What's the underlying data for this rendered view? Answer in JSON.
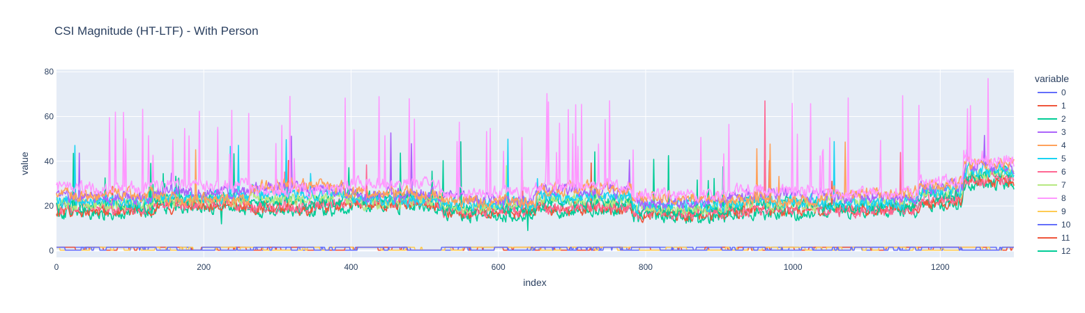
{
  "chart_data": {
    "type": "line",
    "title": "CSI Magnitude (HT-LTF) - With Person",
    "xlabel": "index",
    "ylabel": "value",
    "xlim": [
      0,
      1300
    ],
    "ylim": [
      -3,
      81
    ],
    "x_ticks": [
      0,
      200,
      400,
      600,
      800,
      1000,
      1200
    ],
    "y_ticks": [
      0,
      20,
      40,
      60,
      80
    ],
    "grid": true,
    "legend_title": "variable",
    "legend_position": "right",
    "series": [
      {
        "name": "0",
        "color": "#636efa",
        "profile": "baseline",
        "values": [
          0,
          1,
          0,
          1,
          1,
          0,
          1,
          1,
          0,
          1
        ]
      },
      {
        "name": "1",
        "color": "#EF553B",
        "profile": "baseline",
        "values": [
          0,
          1,
          1,
          1,
          0,
          1,
          1,
          1,
          1,
          0
        ]
      },
      {
        "name": "2",
        "color": "#00cc96",
        "profile": "band",
        "level": 21,
        "values": [
          20,
          23,
          22,
          24,
          19,
          22,
          18,
          21,
          20,
          25
        ]
      },
      {
        "name": "3",
        "color": "#ab63fa",
        "profile": "band",
        "level": 25,
        "values": [
          24,
          26,
          28,
          25,
          23,
          27,
          22,
          25,
          24,
          29
        ]
      },
      {
        "name": "4",
        "color": "#FFA15A",
        "profile": "band",
        "level": 24,
        "values": [
          25,
          23,
          29,
          26,
          22,
          28,
          24,
          23,
          26,
          30
        ]
      },
      {
        "name": "5",
        "color": "#19d3f3",
        "profile": "band",
        "level": 23,
        "values": [
          22,
          24,
          26,
          23,
          21,
          24,
          20,
          22,
          21,
          27
        ]
      },
      {
        "name": "6",
        "color": "#FF6692",
        "profile": "band",
        "level": 20,
        "values": [
          19,
          21,
          20,
          22,
          18,
          20,
          17,
          19,
          18,
          23
        ]
      },
      {
        "name": "7",
        "color": "#B6E880",
        "profile": "band",
        "level": 22,
        "values": [
          21,
          23,
          24,
          22,
          20,
          23,
          19,
          21,
          22,
          26
        ]
      },
      {
        "name": "8",
        "color": "#FF97FF",
        "profile": "spiky",
        "level": 27,
        "values": [
          28,
          29,
          27,
          30,
          26,
          29,
          25,
          27,
          26,
          31
        ]
      },
      {
        "name": "9",
        "color": "#FECB52",
        "profile": "baseline",
        "values": [
          0,
          0,
          1,
          0,
          0,
          0,
          1,
          0,
          0,
          1
        ]
      },
      {
        "name": "10",
        "color": "#636efa",
        "profile": "baseline",
        "values": [
          1,
          0,
          1,
          0,
          1,
          1,
          0,
          1,
          0,
          1
        ]
      },
      {
        "name": "11",
        "color": "#EF553B",
        "profile": "band",
        "level": 19,
        "values": [
          18,
          20,
          19,
          21,
          17,
          19,
          16,
          18,
          19,
          22
        ]
      },
      {
        "name": "12",
        "color": "#00cc96",
        "profile": "band",
        "level": 18,
        "values": [
          17,
          19,
          18,
          20,
          16,
          18,
          15,
          17,
          18,
          21
        ]
      }
    ]
  }
}
